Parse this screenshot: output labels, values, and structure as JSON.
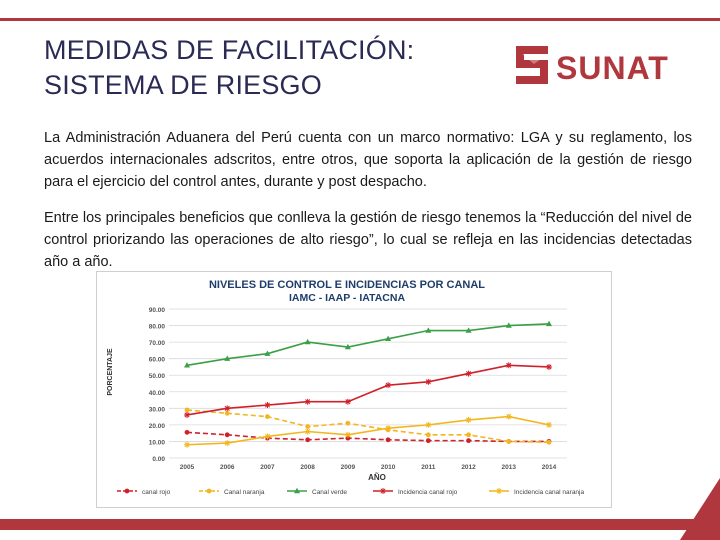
{
  "slide": {
    "title_line1": "MEDIDAS DE FACILITACIÓN:",
    "title_line2": "SISTEMA DE RIESGO",
    "logo_text": "SUNAT",
    "paragraph1": "La Administración Aduanera del Perú cuenta con un marco normativo: LGA y su reglamento, los acuerdos internacionales adscritos, entre otros, que soporta la aplicación de la gestión de riesgo para el ejercicio del control antes, durante y post despacho.",
    "paragraph2": "Entre los principales beneficios que conlleva la gestión de riesgo tenemos la “Reducción del nivel de control priorizando las operaciones de alto riesgo”, lo cual se refleja en las incidencias detectadas año a año."
  },
  "colors": {
    "accent": "#b0373d",
    "title": "#2a2a55",
    "red_series": "#d0202a",
    "orange_series": "#f2b61f",
    "green_series": "#3aa046",
    "chart_title": "#1f3d6b"
  },
  "chart_data": {
    "type": "line",
    "title_line1": "NIVELES DE CONTROL E INCIDENCIAS POR CANAL",
    "title_line2": "IAMC - IAAP - IATACNA",
    "xlabel": "AÑO",
    "ylabel": "PORCENTAJE",
    "x": [
      "2005",
      "2006",
      "2007",
      "2008",
      "2009",
      "2010",
      "2011",
      "2012",
      "2013",
      "2014"
    ],
    "ylim": [
      0,
      90
    ],
    "yticks": [
      "0.00",
      "10.00",
      "20.00",
      "30.00",
      "40.00",
      "50.00",
      "60.00",
      "70.00",
      "80.00",
      "90.00"
    ],
    "grid": true,
    "legend_position": "bottom",
    "series": [
      {
        "name": "canal rojo",
        "color": "#d0202a",
        "dashed": true,
        "marker": "circle",
        "values": [
          15.5,
          14,
          12,
          11,
          12,
          11,
          10.5,
          10.5,
          10,
          10
        ]
      },
      {
        "name": "Canal naranja",
        "color": "#f2b61f",
        "dashed": true,
        "marker": "circle",
        "values": [
          29,
          27,
          25,
          19,
          21,
          17,
          14,
          14,
          10,
          9.5
        ]
      },
      {
        "name": "Canal verde",
        "color": "#3aa046",
        "dashed": false,
        "marker": "triangle",
        "values": [
          56,
          60,
          63,
          70,
          67,
          72,
          77,
          77,
          80,
          81
        ]
      },
      {
        "name": "Incidencia canal rojo",
        "color": "#d0202a",
        "dashed": false,
        "marker": "star",
        "values": [
          26,
          30,
          32,
          34,
          34,
          44,
          46,
          51,
          56,
          55
        ]
      },
      {
        "name": "Incidencia canal naranja",
        "color": "#f2b61f",
        "dashed": false,
        "marker": "star",
        "values": [
          8,
          9,
          13,
          16,
          14,
          18,
          20,
          23,
          25,
          20
        ]
      }
    ]
  }
}
